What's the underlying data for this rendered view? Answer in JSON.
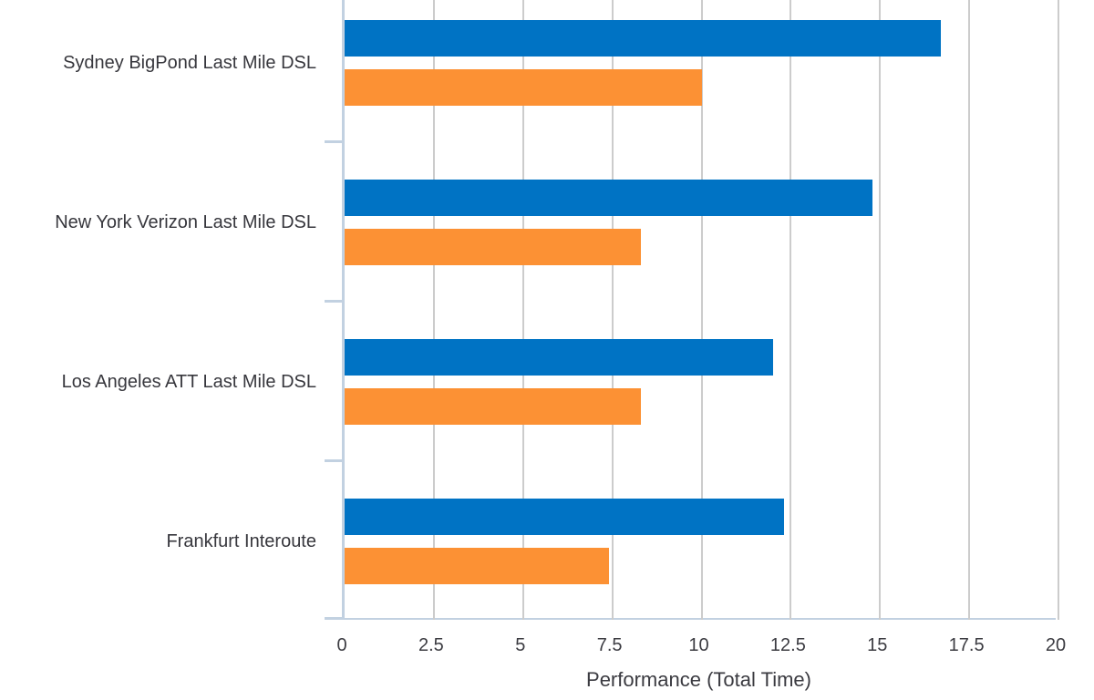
{
  "chart_data": {
    "type": "bar",
    "orientation": "horizontal",
    "title": "",
    "xlabel": "Performance (Total Time)",
    "ylabel": "",
    "xlim": [
      0,
      20
    ],
    "x_tick_step": 2.5,
    "x_tick_labels": [
      "0",
      "2.5",
      "5",
      "7.5",
      "10",
      "12.5",
      "15",
      "17.5",
      "20"
    ],
    "grid": "vertical",
    "legend_position": "none",
    "categories": [
      "Sydney BigPond Last Mile DSL",
      "New York Verizon Last Mile DSL",
      "Los Angeles ATT Last Mile DSL",
      "Frankfurt Interoute"
    ],
    "series": [
      {
        "name": "blue",
        "color": "#0073c4",
        "values": [
          16.7,
          14.8,
          12.0,
          12.3
        ]
      },
      {
        "name": "orange",
        "color": "#fc9134",
        "values": [
          10.0,
          8.3,
          8.3,
          7.4
        ]
      }
    ]
  },
  "colors": {
    "axis": "#c2d1e1",
    "gridline": "#cccccc",
    "text": "#3b3b41",
    "background": "#ffffff"
  }
}
